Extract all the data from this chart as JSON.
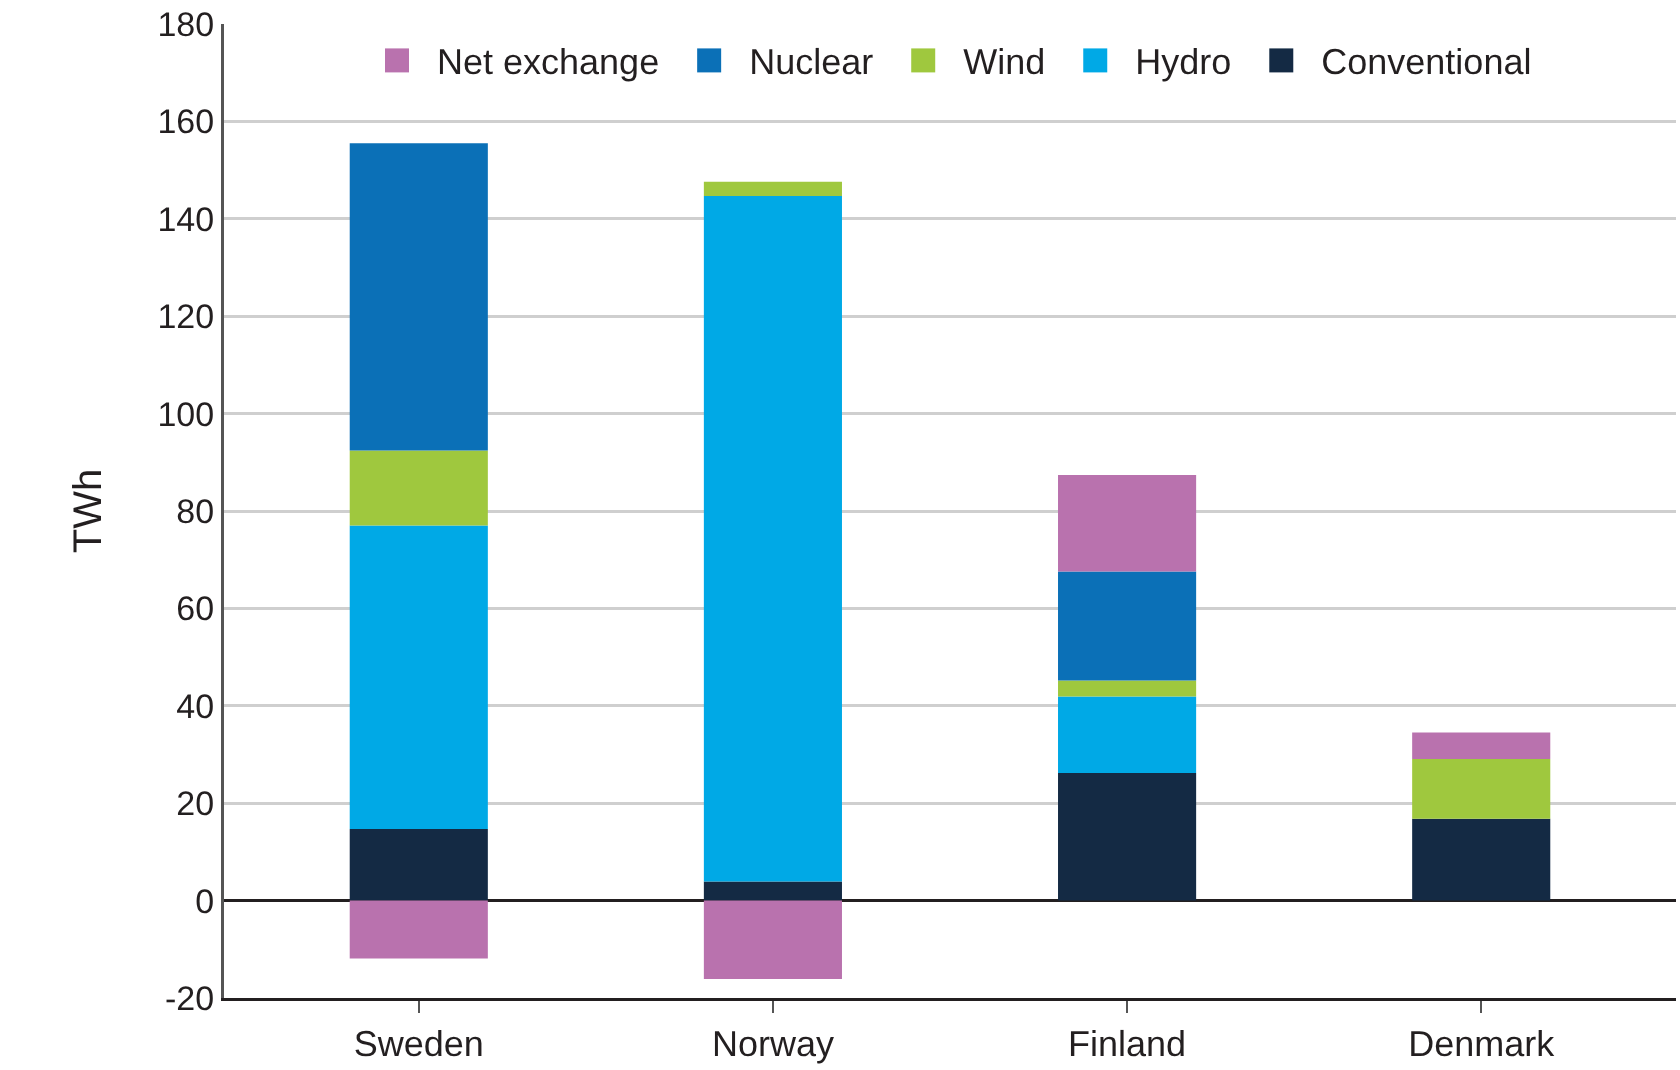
{
  "chart_data": {
    "type": "bar",
    "stacked": true,
    "ylabel": "TWh",
    "categories": [
      "Sweden",
      "Norway",
      "Finland",
      "Denmark"
    ],
    "series": [
      {
        "name": "Conventional",
        "color": "#142a44",
        "values": [
          14.7,
          3.9,
          26.2,
          16.8
        ]
      },
      {
        "name": "Hydro",
        "color": "#00a9e6",
        "values": [
          62.3,
          140.8,
          15.7,
          0
        ]
      },
      {
        "name": "Wind",
        "color": "#9fc83e",
        "values": [
          15.4,
          2.9,
          3.3,
          12.3
        ]
      },
      {
        "name": "Nuclear",
        "color": "#0b70b7",
        "values": [
          63.1,
          0,
          22.4,
          0
        ]
      },
      {
        "name": "Net exchange",
        "color": "#b972ae",
        "values": [
          -11.9,
          -16.1,
          19.8,
          5.4
        ]
      }
    ],
    "ylim": [
      -20,
      180
    ],
    "yticks": [
      -20,
      0,
      20,
      40,
      60,
      80,
      100,
      120,
      140,
      160,
      180
    ],
    "grid": "y",
    "legend": "top"
  }
}
